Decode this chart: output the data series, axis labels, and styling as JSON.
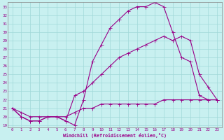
{
  "xlabel": "Windchill (Refroidissement éolien,°C)",
  "bg_color": "#c8f0f0",
  "line_color": "#990088",
  "grid_color": "#a0d8d8",
  "xlim": [
    -0.5,
    23.5
  ],
  "ylim": [
    18.7,
    33.5
  ],
  "yticks": [
    19,
    20,
    21,
    22,
    23,
    24,
    25,
    26,
    27,
    28,
    29,
    30,
    31,
    32,
    33
  ],
  "xticks": [
    0,
    1,
    2,
    3,
    4,
    5,
    6,
    7,
    8,
    9,
    10,
    11,
    12,
    13,
    14,
    15,
    16,
    17,
    18,
    19,
    20,
    21,
    22,
    23
  ],
  "s1_x": [
    0,
    1,
    2,
    3,
    4,
    5,
    6,
    7,
    8,
    9,
    10,
    11,
    12,
    13,
    14,
    15,
    16,
    17,
    18,
    19,
    20,
    21,
    22,
    23
  ],
  "s1_y": [
    21.0,
    20.5,
    20.0,
    20.0,
    20.0,
    20.0,
    20.0,
    20.5,
    21.0,
    21.0,
    21.5,
    21.5,
    21.5,
    21.5,
    21.5,
    21.5,
    21.5,
    22.0,
    22.0,
    22.0,
    22.0,
    22.0,
    22.0,
    22.0
  ],
  "s2_x": [
    0,
    1,
    2,
    3,
    4,
    5,
    6,
    7,
    8,
    9,
    10,
    11,
    12,
    13,
    14,
    15,
    16,
    17,
    18,
    19,
    20,
    21,
    22,
    23
  ],
  "s2_y": [
    21.0,
    20.0,
    19.5,
    19.5,
    20.0,
    20.0,
    19.5,
    19.0,
    22.0,
    26.5,
    28.5,
    30.5,
    31.5,
    32.5,
    33.0,
    33.0,
    33.5,
    33.0,
    30.0,
    27.0,
    26.5,
    22.5,
    22.0,
    22.0
  ],
  "s3_x": [
    0,
    1,
    2,
    3,
    4,
    5,
    6,
    7,
    8,
    9,
    10,
    11,
    12,
    13,
    14,
    15,
    16,
    17,
    18,
    19,
    20,
    21,
    22,
    23
  ],
  "s3_y": [
    21.0,
    20.0,
    19.5,
    19.5,
    20.0,
    20.0,
    19.5,
    22.5,
    23.0,
    24.0,
    25.0,
    26.0,
    27.0,
    27.5,
    28.0,
    28.5,
    29.0,
    29.5,
    29.0,
    29.5,
    29.0,
    25.0,
    23.5,
    22.0
  ]
}
